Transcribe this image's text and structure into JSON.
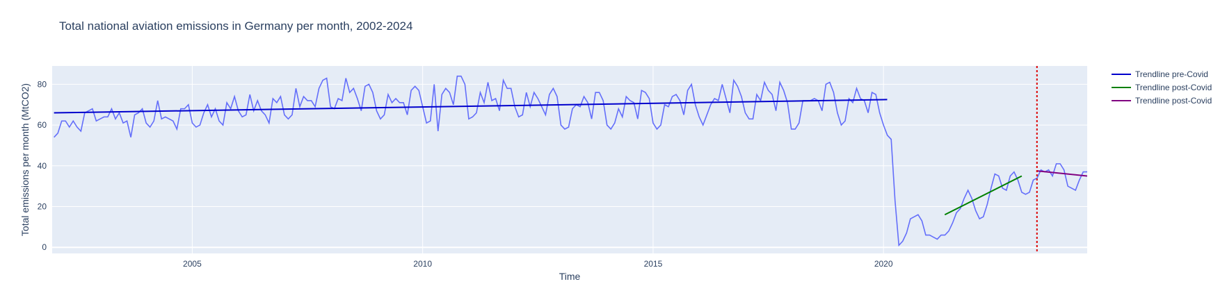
{
  "chart_data": {
    "type": "line",
    "title": "Total national aviation emissions in Germany per month, 2002-2024",
    "xlabel": "Time",
    "ylabel": "Total emissions per month (MtCO2)",
    "xlim": [
      2001.96,
      2024.42
    ],
    "ylim": [
      -3,
      89
    ],
    "xticks": [
      2005,
      2010,
      2015,
      2020
    ],
    "yticks": [
      0,
      20,
      40,
      60,
      80
    ],
    "grid": true,
    "legend_position": "right",
    "colors": {
      "plot_bg": "#e5ecf6",
      "grid": "#ffffff",
      "monthly": "#636efa",
      "trend_pre": "#0000cc",
      "trend_post_a": "#008000",
      "trend_post_b": "#800080",
      "vline": "#dd0000"
    },
    "monthly_series": {
      "start_year": 2002,
      "values": [
        54,
        56,
        62,
        62,
        59,
        62,
        59,
        57,
        66,
        67,
        68,
        62,
        63,
        64,
        64,
        68,
        63,
        66,
        61,
        62,
        54,
        65,
        66,
        68,
        61,
        59,
        62,
        72,
        63,
        64,
        63,
        62,
        58,
        68,
        68,
        70,
        61,
        59,
        60,
        66,
        70,
        64,
        68,
        62,
        60,
        71,
        68,
        74,
        67,
        64,
        65,
        75,
        67,
        72,
        67,
        65,
        61,
        73,
        71,
        74,
        65,
        63,
        65,
        78,
        69,
        74,
        72,
        72,
        69,
        78,
        82,
        83,
        69,
        68,
        73,
        72,
        83,
        76,
        78,
        73,
        67,
        79,
        80,
        76,
        67,
        63,
        65,
        75,
        71,
        73,
        71,
        71,
        65,
        77,
        79,
        77,
        69,
        61,
        62,
        80,
        57,
        75,
        78,
        76,
        70,
        84,
        84,
        80,
        63,
        64,
        66,
        76,
        71,
        81,
        72,
        73,
        67,
        82,
        78,
        78,
        69,
        64,
        65,
        76,
        69,
        76,
        73,
        69,
        65,
        75,
        78,
        74,
        60,
        58,
        59,
        68,
        70,
        69,
        74,
        71,
        63,
        76,
        76,
        72,
        60,
        58,
        61,
        68,
        64,
        74,
        72,
        71,
        63,
        77,
        76,
        73,
        61,
        58,
        60,
        70,
        69,
        74,
        75,
        72,
        65,
        77,
        80,
        70,
        64,
        60,
        65,
        70,
        73,
        72,
        80,
        73,
        66,
        82,
        79,
        74,
        66,
        63,
        63,
        75,
        72,
        81,
        77,
        75,
        67,
        81,
        77,
        71,
        58,
        58,
        61,
        72,
        72,
        72,
        73,
        72,
        67,
        80,
        81,
        76,
        66,
        60,
        62,
        73,
        71,
        78,
        73,
        72,
        66,
        76,
        75,
        66,
        60,
        55,
        53,
        23,
        1,
        3,
        7,
        14,
        15,
        16,
        13,
        6,
        6,
        5,
        4,
        6,
        6,
        8,
        12,
        17,
        19,
        24,
        28,
        24,
        18,
        14,
        15,
        21,
        29,
        36,
        35,
        29,
        28,
        35,
        37,
        33,
        27,
        26,
        27,
        33,
        34,
        38,
        37,
        38,
        35,
        41,
        41,
        38,
        30,
        29,
        28,
        33,
        37,
        37,
        39
      ]
    },
    "vline_x": 2023.33,
    "series": [
      {
        "name": "Trendline pre-Covid",
        "x": [
          2002.0,
          2020.08
        ],
        "y": [
          66,
          72.5
        ]
      },
      {
        "name": "Trendline post-Covid",
        "x": [
          2021.33,
          2023.0
        ],
        "y": [
          16,
          35
        ]
      },
      {
        "name": "Trendline post-Covid",
        "x": [
          2023.33,
          2024.42
        ],
        "y": [
          37.5,
          35
        ]
      }
    ]
  }
}
